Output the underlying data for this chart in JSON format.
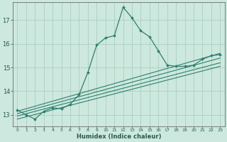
{
  "xlabel": "Humidex (Indice chaleur)",
  "bg_color": "#cde8de",
  "grid_color": "#aacfbf",
  "line_color": "#2e7f6e",
  "xlim": [
    -0.5,
    23.5
  ],
  "ylim": [
    12.5,
    17.75
  ],
  "yticks": [
    13,
    14,
    15,
    16,
    17
  ],
  "xticks": [
    0,
    1,
    2,
    3,
    4,
    5,
    6,
    7,
    8,
    9,
    10,
    11,
    12,
    13,
    14,
    15,
    16,
    17,
    18,
    19,
    20,
    21,
    22,
    23
  ],
  "main_x": [
    0,
    1,
    2,
    3,
    4,
    5,
    6,
    7,
    8,
    9,
    10,
    11,
    12,
    13,
    14,
    15,
    16,
    17,
    18,
    19,
    20,
    21,
    22,
    23
  ],
  "main_y": [
    13.2,
    13.0,
    12.82,
    13.15,
    13.3,
    13.25,
    13.45,
    13.85,
    14.8,
    15.95,
    16.25,
    16.35,
    17.55,
    17.1,
    16.55,
    16.3,
    15.7,
    15.1,
    15.05,
    15.05,
    15.1,
    15.35,
    15.5,
    15.55
  ],
  "trend_lines": [
    {
      "x": [
        0,
        23
      ],
      "y": [
        12.82,
        15.05
      ]
    },
    {
      "x": [
        0,
        23
      ],
      "y": [
        12.95,
        15.2
      ]
    },
    {
      "x": [
        0,
        23
      ],
      "y": [
        13.05,
        15.4
      ]
    },
    {
      "x": [
        0,
        23
      ],
      "y": [
        13.15,
        15.6
      ]
    }
  ],
  "xlabel_fontsize": 6.0,
  "ytick_fontsize": 6.0,
  "xtick_fontsize": 4.5
}
